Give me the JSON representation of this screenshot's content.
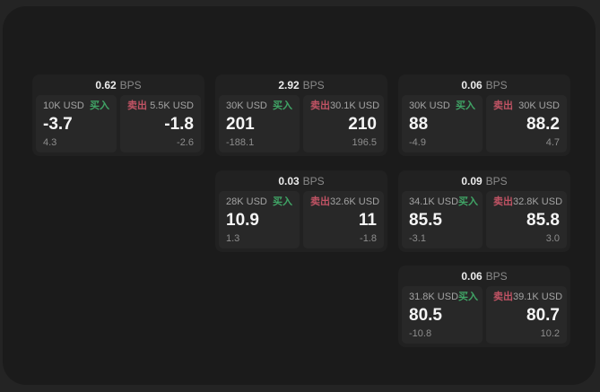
{
  "labels": {
    "bps_unit": "BPS",
    "buy": "买入",
    "sell": "卖出"
  },
  "colors": {
    "page_bg": "#242424",
    "panel_bg": "#1b1b1b",
    "card_bg": "#212121",
    "tile_bg": "#282828",
    "buy_green": "#40a566",
    "sell_red": "#c05364",
    "value_white": "#f5f5f5",
    "muted_gray": "#8d8d8d"
  },
  "cards": [
    {
      "bps": "0.62",
      "buy": {
        "amount": "10K USD",
        "value": "-3.7",
        "delta": "4.3"
      },
      "sell": {
        "amount": "5.5K USD",
        "value": "-1.8",
        "delta": "-2.6"
      }
    },
    {
      "bps": "2.92",
      "buy": {
        "amount": "30K USD",
        "value": "201",
        "delta": "-188.1"
      },
      "sell": {
        "amount": "30.1K USD",
        "value": "210",
        "delta": "196.5"
      }
    },
    {
      "bps": "0.06",
      "buy": {
        "amount": "30K USD",
        "value": "88",
        "delta": "-4.9"
      },
      "sell": {
        "amount": "30K USD",
        "value": "88.2",
        "delta": "4.7"
      }
    },
    {
      "bps": "0.03",
      "buy": {
        "amount": "28K USD",
        "value": "10.9",
        "delta": "1.3"
      },
      "sell": {
        "amount": "32.6K USD",
        "value": "11",
        "delta": "-1.8"
      }
    },
    {
      "bps": "0.09",
      "buy": {
        "amount": "34.1K USD",
        "value": "85.5",
        "delta": "-3.1"
      },
      "sell": {
        "amount": "32.8K USD",
        "value": "85.8",
        "delta": "3.0"
      }
    },
    {
      "bps": "0.06",
      "buy": {
        "amount": "31.8K USD",
        "value": "80.5",
        "delta": "-10.8"
      },
      "sell": {
        "amount": "39.1K USD",
        "value": "80.7",
        "delta": "10.2"
      }
    }
  ]
}
